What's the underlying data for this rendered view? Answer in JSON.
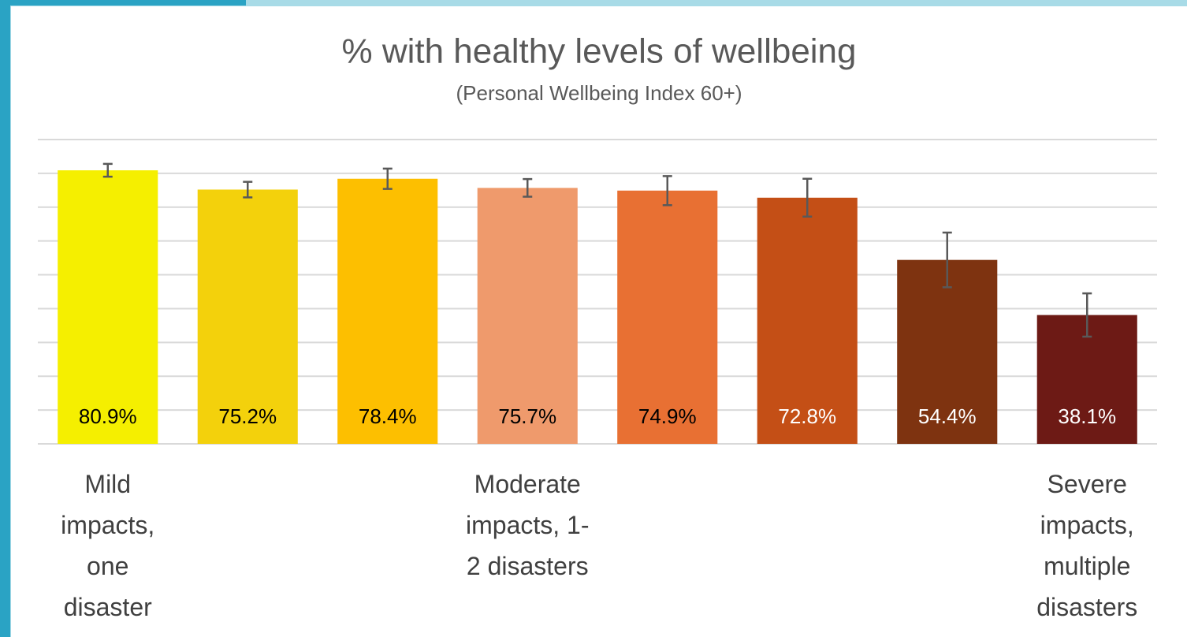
{
  "chart_data": {
    "type": "bar",
    "title": "% with healthy levels of wellbeing",
    "subtitle": "(Personal Wellbeing Index 60+)",
    "categories": [
      "Mild impacts, one disaster",
      null,
      null,
      "Moderate impacts, 1-2 disasters",
      null,
      null,
      null,
      "Severe impacts, multiple disasters"
    ],
    "values": [
      80.9,
      75.2,
      78.4,
      75.7,
      74.9,
      72.8,
      54.4,
      38.1
    ],
    "value_labels": [
      "80.9%",
      "75.2%",
      "78.4%",
      "75.7%",
      "74.9%",
      "72.8%",
      "54.4%",
      "38.1%"
    ],
    "errors": [
      1.9,
      2.3,
      3.0,
      2.6,
      4.3,
      5.6,
      8.1,
      6.4
    ],
    "colors": [
      "#f5ef00",
      "#f3d10c",
      "#fdbf00",
      "#ef9a6c",
      "#e87033",
      "#c44f16",
      "#7e3310",
      "#6d1a15"
    ],
    "ylim": [
      0,
      90
    ],
    "yticks": [
      0,
      10,
      20,
      30,
      40,
      50,
      60,
      70,
      80,
      90
    ],
    "grid": true
  }
}
